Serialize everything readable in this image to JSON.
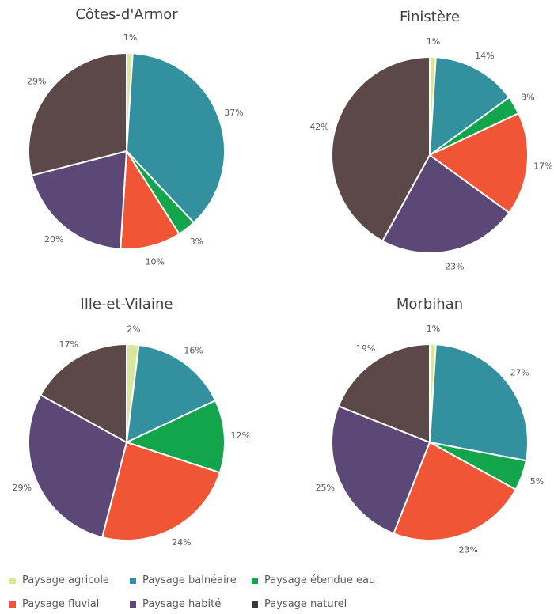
{
  "chart_data": {
    "type": "pie",
    "categories": [
      "Paysage agricole",
      "Paysage balnéaire",
      "Paysage étendue eau",
      "Paysage fluvial",
      "Paysage habité",
      "Paysage naturel"
    ],
    "colors": [
      "#d8e79a",
      "#33909e",
      "#12a54c",
      "#f05535",
      "#5c4876",
      "#5c4749"
    ],
    "legend_marker_colors": [
      "#d8e79a",
      "#33909e",
      "#12a54c",
      "#f05535",
      "#5c4876",
      "#3a3a3a"
    ],
    "pies": [
      {
        "title": "Côtes-d'Armor",
        "values": [
          1,
          37,
          3,
          10,
          20,
          29
        ],
        "labels": [
          "1%",
          "37%",
          "3%",
          "10%",
          "20%",
          "29%"
        ]
      },
      {
        "title": "Finistère",
        "values": [
          1,
          14,
          3,
          17,
          23,
          42
        ],
        "labels": [
          "1%",
          "14%",
          "3%",
          "17%",
          "23%",
          "42%"
        ]
      },
      {
        "title": "Ille-et-Vilaine",
        "values": [
          2,
          16,
          12,
          24,
          29,
          17
        ],
        "labels": [
          "2%",
          "16%",
          "12%",
          "24%",
          "29%",
          "17%"
        ]
      },
      {
        "title": "Morbihan",
        "values": [
          1,
          27,
          5,
          23,
          25,
          19
        ],
        "labels": [
          "1%",
          "27%",
          "5%",
          "23%",
          "25%",
          "19%"
        ]
      }
    ]
  }
}
